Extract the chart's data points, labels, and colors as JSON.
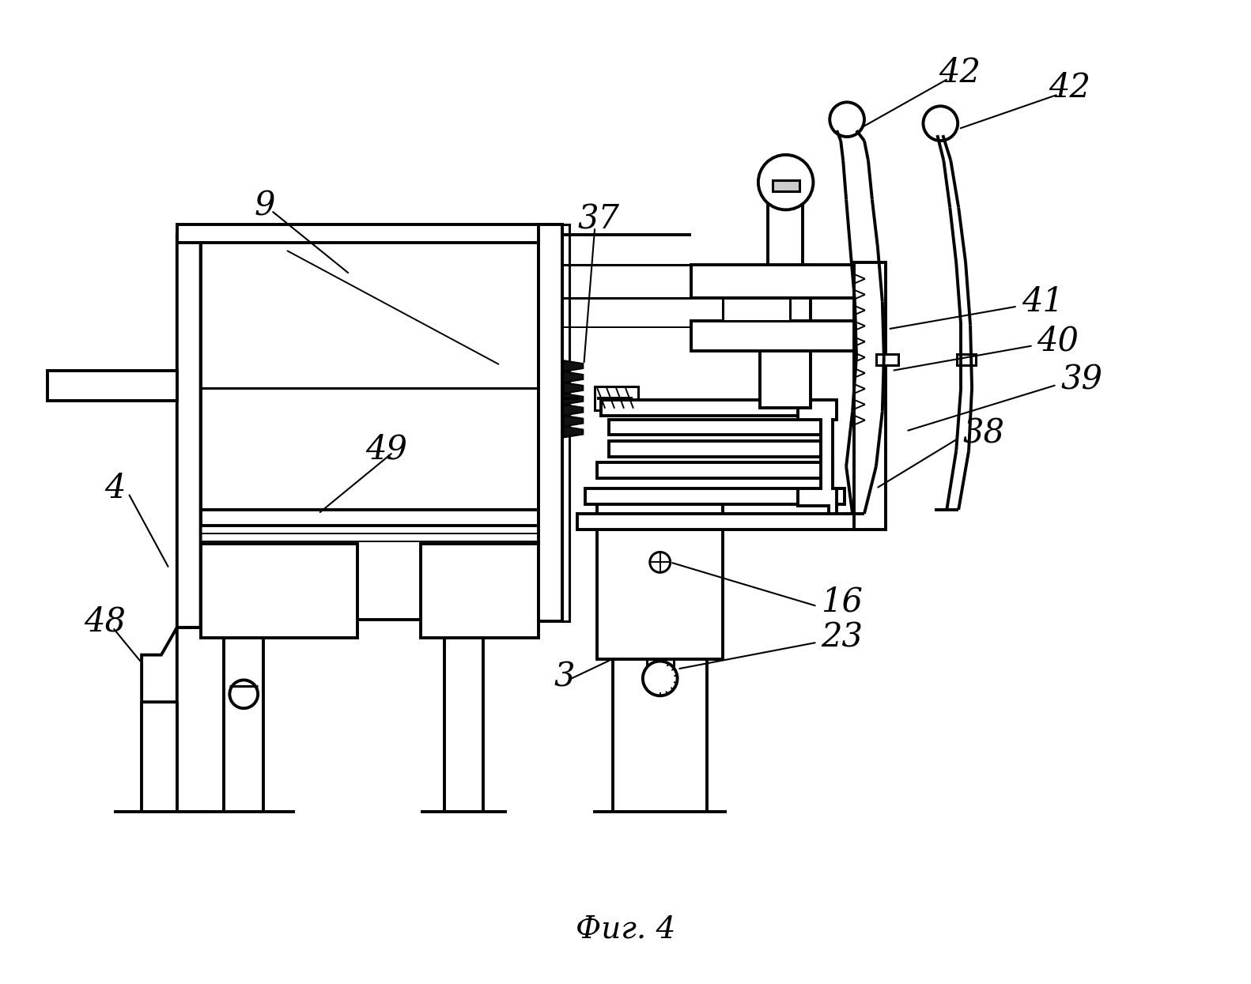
{
  "background_color": "#ffffff",
  "fig_width": 15.82,
  "fig_height": 12.45,
  "caption": "Фиг. 4",
  "lw": 2.2,
  "lw_thin": 1.4,
  "lw_thick": 2.8
}
